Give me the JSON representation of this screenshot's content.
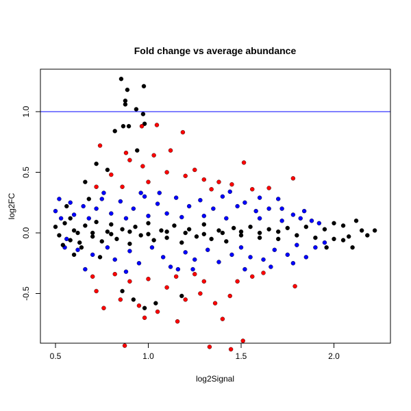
{
  "chart_data": {
    "type": "scatter",
    "title": "Fold change vs average abundance",
    "xlabel": "log2Signal",
    "ylabel": "log2FC",
    "xlim": [
      0.42,
      2.31
    ],
    "ylim": [
      -0.91,
      1.35
    ],
    "xticks": [
      "0.5",
      "1.0",
      "1.5",
      "2.0"
    ],
    "xtick_values": [
      0.5,
      1.0,
      1.5,
      2.0
    ],
    "yticks": [
      "-0.5",
      "0.0",
      "0.5",
      "1.0"
    ],
    "ytick_values": [
      -0.5,
      0.0,
      0.5,
      1.0
    ],
    "grid": false,
    "hline": {
      "y": 1.0,
      "color": "#0000FF"
    },
    "colors": {
      "black": "#000000",
      "blue": "#0000FF",
      "red": "#FF0000"
    },
    "series": [
      {
        "color": "#000000",
        "points": [
          [
            0.854,
            1.27
          ],
          [
            0.976,
            1.21
          ],
          [
            0.887,
            1.18
          ],
          [
            0.876,
            1.09
          ],
          [
            0.876,
            1.06
          ],
          [
            0.935,
            1.02
          ],
          [
            0.972,
            0.98
          ],
          [
            0.98,
            0.9
          ],
          [
            0.895,
            0.88
          ],
          [
            0.865,
            0.88
          ],
          [
            0.82,
            0.84
          ],
          [
            0.94,
            0.68
          ],
          [
            0.72,
            0.57
          ],
          [
            0.78,
            0.52
          ],
          [
            0.66,
            0.42
          ],
          [
            0.92,
            -0.55
          ],
          [
            0.98,
            -0.62
          ],
          [
            1.04,
            -0.58
          ],
          [
            0.86,
            -0.48
          ],
          [
            1.18,
            -0.52
          ],
          [
            0.5,
            0.05
          ],
          [
            0.52,
            -0.02
          ],
          [
            0.55,
            0.08
          ],
          [
            0.58,
            -0.06
          ],
          [
            0.6,
            0.02
          ],
          [
            0.63,
            -0.08
          ],
          [
            0.66,
            0.06
          ],
          [
            0.7,
            -0.03
          ],
          [
            0.72,
            0.09
          ],
          [
            0.75,
            -0.07
          ],
          [
            0.78,
            0.01
          ],
          [
            0.8,
            0.07
          ],
          [
            0.83,
            -0.05
          ],
          [
            0.86,
            0.03
          ],
          [
            0.9,
            -0.09
          ],
          [
            0.93,
            0.05
          ],
          [
            0.96,
            -0.02
          ],
          [
            1.0,
            0.08
          ],
          [
            1.03,
            -0.06
          ],
          [
            1.07,
            0.02
          ],
          [
            1.1,
            -0.04
          ],
          [
            1.14,
            0.06
          ],
          [
            1.18,
            -0.08
          ],
          [
            1.22,
            0.03
          ],
          [
            1.26,
            -0.03
          ],
          [
            1.3,
            0.07
          ],
          [
            1.34,
            -0.05
          ],
          [
            1.38,
            0.02
          ],
          [
            1.42,
            -0.07
          ],
          [
            1.46,
            0.04
          ],
          [
            1.5,
            -0.02
          ],
          [
            1.55,
            0.05
          ],
          [
            1.6,
            -0.04
          ],
          [
            1.65,
            0.03
          ],
          [
            1.7,
            -0.05
          ],
          [
            1.75,
            0.04
          ],
          [
            1.8,
            -0.02
          ],
          [
            1.85,
            0.05
          ],
          [
            1.9,
            -0.04
          ],
          [
            1.95,
            0.03
          ],
          [
            2.0,
            -0.05
          ],
          [
            2.05,
            0.06
          ],
          [
            2.08,
            -0.03
          ],
          [
            2.12,
            0.1
          ],
          [
            2.15,
            0.02
          ],
          [
            2.18,
            -0.02
          ],
          [
            2.22,
            0.02
          ],
          [
            2.1,
            -0.12
          ],
          [
            2.0,
            0.08
          ],
          [
            0.56,
            0.22
          ],
          [
            0.6,
            -0.18
          ],
          [
            0.68,
            0.28
          ],
          [
            0.74,
            -0.2
          ],
          [
            1.96,
            -0.12
          ],
          [
            2.05,
            -0.06
          ],
          [
            0.62,
            0.0
          ],
          [
            0.7,
            0.0
          ],
          [
            0.8,
            -0.01
          ],
          [
            0.9,
            0.01
          ],
          [
            1.0,
            -0.01
          ],
          [
            1.1,
            0.01
          ],
          [
            1.2,
            0.0
          ],
          [
            1.3,
            -0.01
          ],
          [
            1.4,
            0.0
          ],
          [
            1.5,
            0.01
          ],
          [
            1.6,
            0.0
          ],
          [
            1.7,
            0.01
          ],
          [
            0.54,
            -0.1
          ],
          [
            0.58,
            0.12
          ],
          [
            0.64,
            -0.12
          ]
        ]
      },
      {
        "color": "#0000FF",
        "points": [
          [
            0.5,
            0.18
          ],
          [
            0.53,
            0.12
          ],
          [
            0.55,
            -0.12
          ],
          [
            0.58,
            0.25
          ],
          [
            0.6,
            0.15
          ],
          [
            0.62,
            -0.14
          ],
          [
            0.65,
            0.22
          ],
          [
            0.68,
            0.12
          ],
          [
            0.7,
            -0.18
          ],
          [
            0.72,
            0.2
          ],
          [
            0.75,
            0.28
          ],
          [
            0.78,
            -0.12
          ],
          [
            0.8,
            0.16
          ],
          [
            0.82,
            -0.22
          ],
          [
            0.85,
            0.26
          ],
          [
            0.88,
            0.12
          ],
          [
            0.9,
            -0.15
          ],
          [
            0.92,
            0.2
          ],
          [
            0.95,
            -0.25
          ],
          [
            0.98,
            0.3
          ],
          [
            1.0,
            0.14
          ],
          [
            1.02,
            -0.12
          ],
          [
            1.05,
            0.24
          ],
          [
            1.08,
            -0.2
          ],
          [
            1.1,
            0.16
          ],
          [
            1.12,
            -0.28
          ],
          [
            1.15,
            0.29
          ],
          [
            1.18,
            0.13
          ],
          [
            1.2,
            -0.16
          ],
          [
            1.22,
            0.22
          ],
          [
            1.25,
            -0.22
          ],
          [
            1.28,
            0.27
          ],
          [
            1.3,
            0.14
          ],
          [
            1.32,
            -0.14
          ],
          [
            1.35,
            0.2
          ],
          [
            1.38,
            -0.24
          ],
          [
            1.4,
            0.3
          ],
          [
            1.42,
            0.12
          ],
          [
            1.45,
            -0.18
          ],
          [
            1.48,
            0.22
          ],
          [
            1.5,
            -0.12
          ],
          [
            1.52,
            0.25
          ],
          [
            1.55,
            -0.2
          ],
          [
            1.58,
            0.18
          ],
          [
            1.6,
            0.12
          ],
          [
            1.62,
            -0.22
          ],
          [
            1.65,
            0.2
          ],
          [
            1.68,
            -0.14
          ],
          [
            1.7,
            0.28
          ],
          [
            1.72,
            0.1
          ],
          [
            1.75,
            -0.18
          ],
          [
            1.78,
            0.15
          ],
          [
            1.8,
            -0.1
          ],
          [
            1.82,
            0.12
          ],
          [
            1.85,
            -0.2
          ],
          [
            1.88,
            0.1
          ],
          [
            1.9,
            -0.12
          ],
          [
            1.92,
            0.08
          ],
          [
            1.95,
            -0.08
          ],
          [
            0.66,
            -0.3
          ],
          [
            0.76,
            0.33
          ],
          [
            0.88,
            -0.32
          ],
          [
            1.06,
            0.33
          ],
          [
            1.24,
            -0.3
          ],
          [
            1.44,
            0.34
          ],
          [
            1.6,
            0.29
          ],
          [
            1.66,
            -0.28
          ],
          [
            1.72,
            0.2
          ],
          [
            1.84,
            0.18
          ],
          [
            1.78,
            -0.25
          ],
          [
            1.52,
            -0.3
          ],
          [
            1.16,
            -0.3
          ],
          [
            0.96,
            0.33
          ],
          [
            0.52,
            0.28
          ],
          [
            0.56,
            -0.05
          ]
        ]
      },
      {
        "color": "#FF0000",
        "points": [
          [
            0.965,
            0.88
          ],
          [
            1.046,
            0.89
          ],
          [
            1.186,
            0.83
          ],
          [
            0.74,
            0.72
          ],
          [
            0.88,
            0.66
          ],
          [
            1.03,
            0.64
          ],
          [
            1.12,
            0.68
          ],
          [
            0.9,
            0.6
          ],
          [
            0.97,
            0.55
          ],
          [
            1.515,
            0.58
          ],
          [
            1.1,
            0.5
          ],
          [
            1.2,
            0.47
          ],
          [
            1.3,
            0.44
          ],
          [
            1.38,
            0.42
          ],
          [
            1.25,
            0.52
          ],
          [
            0.8,
            0.48
          ],
          [
            1.65,
            0.37
          ],
          [
            1.78,
            0.45
          ],
          [
            1.45,
            0.4
          ],
          [
            1.56,
            0.36
          ],
          [
            0.72,
            0.38
          ],
          [
            1.0,
            0.42
          ],
          [
            0.86,
            0.38
          ],
          [
            1.34,
            0.36
          ],
          [
            0.873,
            -0.93
          ],
          [
            1.33,
            -0.94
          ],
          [
            1.445,
            -0.96
          ],
          [
            1.51,
            -0.89
          ],
          [
            1.4,
            -0.71
          ],
          [
            1.157,
            -0.73
          ],
          [
            1.79,
            -0.44
          ],
          [
            0.72,
            -0.48
          ],
          [
            0.76,
            -0.62
          ],
          [
            0.85,
            -0.55
          ],
          [
            0.95,
            -0.6
          ],
          [
            1.05,
            -0.65
          ],
          [
            1.1,
            -0.45
          ],
          [
            1.2,
            -0.55
          ],
          [
            1.28,
            -0.5
          ],
          [
            1.36,
            -0.58
          ],
          [
            1.44,
            -0.52
          ],
          [
            1.48,
            -0.4
          ],
          [
            1.56,
            -0.36
          ],
          [
            0.7,
            -0.36
          ],
          [
            0.9,
            -0.4
          ],
          [
            1.0,
            -0.38
          ],
          [
            1.15,
            -0.36
          ],
          [
            1.3,
            -0.4
          ],
          [
            0.82,
            -0.34
          ],
          [
            1.62,
            -0.33
          ],
          [
            1.25,
            -0.34
          ],
          [
            0.98,
            -0.7
          ]
        ]
      }
    ]
  }
}
